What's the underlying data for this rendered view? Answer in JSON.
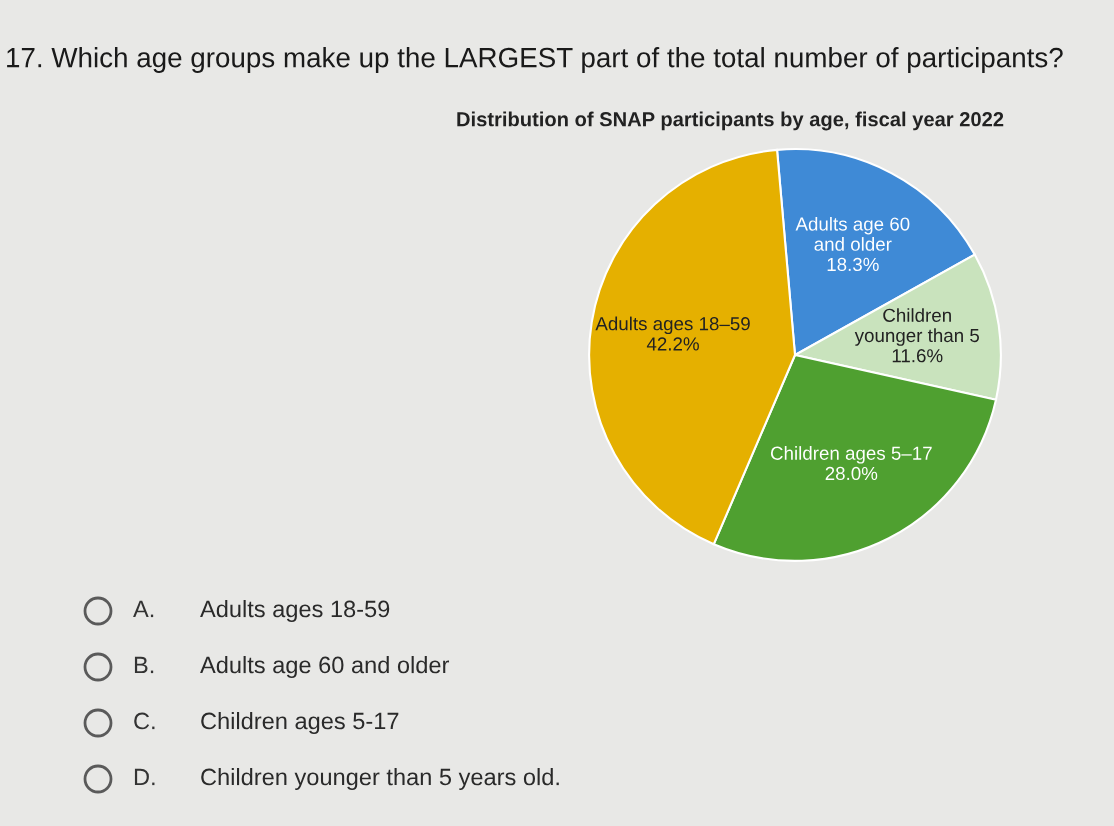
{
  "chart_data": {
    "type": "pie",
    "title": "Distribution of SNAP participants by age, fiscal year 2022",
    "categories": [
      "Adults age 60 and older",
      "Children younger than 5",
      "Children ages 5–17",
      "Adults ages 18–59"
    ],
    "values": [
      18.3,
      11.6,
      28.0,
      42.2
    ],
    "value_labels": [
      "18.3%",
      "11.6%",
      "28.0%",
      "42.2%"
    ],
    "colors": [
      "#3f8ad6",
      "#c9e3bd",
      "#4fa030",
      "#e5b000"
    ],
    "annotations": [
      "17. Which age groups make up the LARGEST part of the total number of participants?",
      "A. Adults ages 18-59",
      "B. Adults age 60 and older",
      "C. Children ages 5-17",
      "D. Children younger than 5 years old."
    ]
  }
}
